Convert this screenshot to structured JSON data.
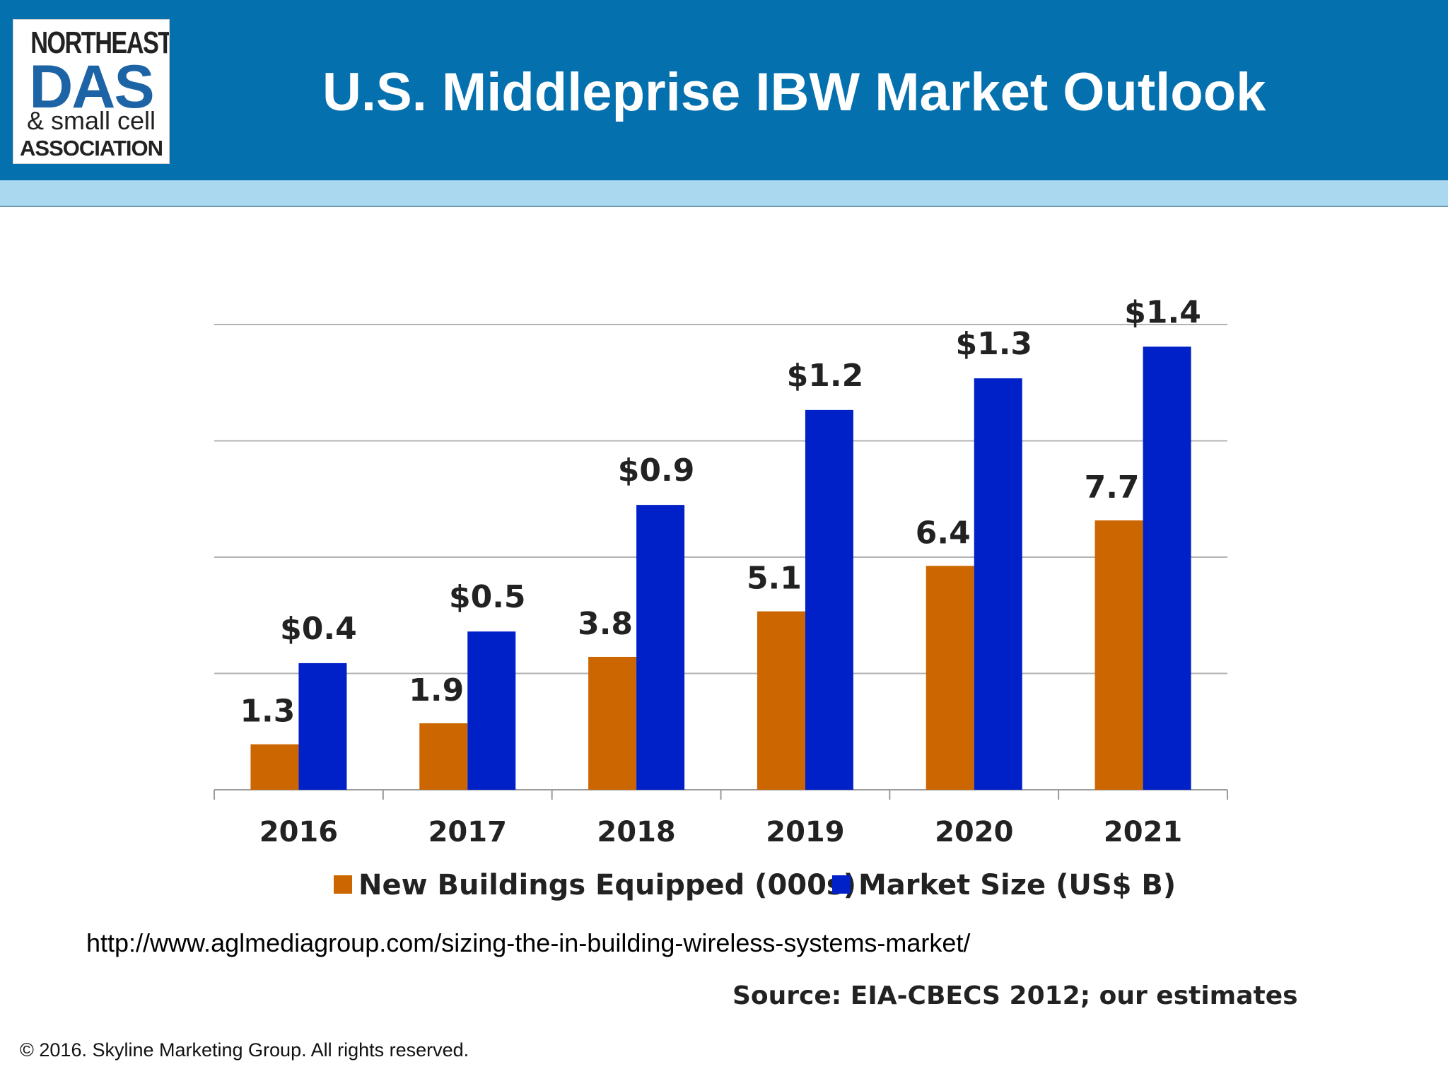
{
  "header": {
    "title": "U.S. Middleprise IBW Market Outlook",
    "band_color": "#0470ae",
    "stripe_color": "#aad8ee"
  },
  "logo": {
    "line1": "NORTHEAST",
    "line2": "DAS",
    "line3": "& small cell",
    "line4": "ASSOCIATION"
  },
  "chart_data": {
    "type": "bar",
    "title": "",
    "xlabel": "",
    "ylabel": "",
    "categories": [
      "2016",
      "2017",
      "2018",
      "2019",
      "2020",
      "2021"
    ],
    "series": [
      {
        "name": "New Buildings Equipped (000s)",
        "color": "#cc6600",
        "values": [
          1.3,
          1.9,
          3.8,
          5.1,
          6.4,
          7.7
        ],
        "labels": [
          "1.3",
          "1.9",
          "3.8",
          "5.1",
          "6.4",
          "7.7"
        ]
      },
      {
        "name": "Market Size (US$ B)",
        "color": "#0020c8",
        "values": [
          0.4,
          0.5,
          0.9,
          1.2,
          1.3,
          1.4
        ],
        "labels": [
          "$0.4",
          "$0.5",
          "$0.9",
          "$1.2",
          "$1.3",
          "$1.4"
        ]
      }
    ],
    "grid": true,
    "legend": "bottom"
  },
  "footer": {
    "url": "http://www.aglmediagroup.com/sizing-the-in-building-wireless-systems-market/",
    "source": "Source: EIA-CBECS 2012; our estimates",
    "copyright": "© 2016. Skyline Marketing Group. All rights reserved."
  }
}
